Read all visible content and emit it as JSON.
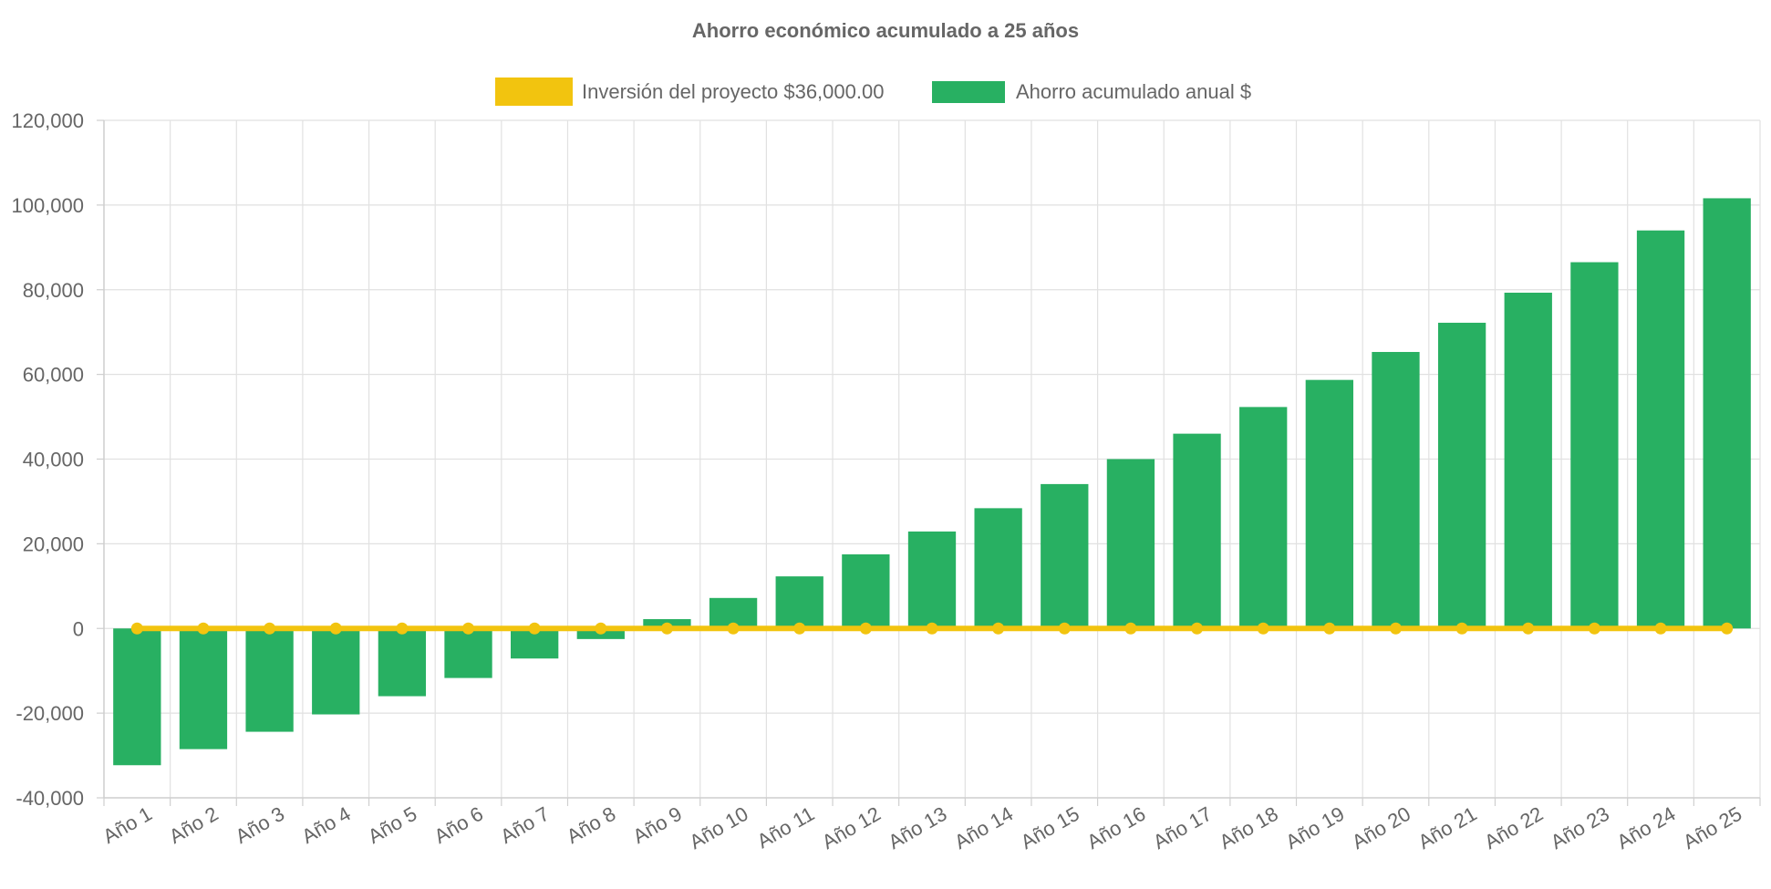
{
  "colors": {
    "savings": "#28b062",
    "investment": "#f2c40f",
    "grid": "#e1e1e1",
    "axis": "#cfcfcf",
    "text": "#666666"
  },
  "chart_data": {
    "type": "bar",
    "title": "Ahorro económico acumulado a 25 años",
    "xlabel": "",
    "ylabel": "",
    "ylim": [
      -40000,
      120000
    ],
    "y_ticks": [
      120000,
      100000,
      80000,
      60000,
      40000,
      20000,
      0,
      -20000,
      -40000
    ],
    "y_tick_labels": [
      "120,000",
      "100,000",
      "80,000",
      "60,000",
      "40,000",
      "20,000",
      "0",
      "-20,000",
      "-40,000"
    ],
    "grid": true,
    "legend_position": "top",
    "categories": [
      "Año 1",
      "Año 2",
      "Año 3",
      "Año 4",
      "Año 5",
      "Año 6",
      "Año 7",
      "Año 8",
      "Año 9",
      "Año 10",
      "Año 11",
      "Año 12",
      "Año 13",
      "Año 14",
      "Año 15",
      "Año 16",
      "Año 17",
      "Año 18",
      "Año 19",
      "Año 20",
      "Año 21",
      "Año 22",
      "Año 23",
      "Año 24",
      "Año 25"
    ],
    "series": [
      {
        "name": "Inversión del proyecto $36,000.00",
        "type": "line",
        "color": "#f2c40f",
        "values": [
          0,
          0,
          0,
          0,
          0,
          0,
          0,
          0,
          0,
          0,
          0,
          0,
          0,
          0,
          0,
          0,
          0,
          0,
          0,
          0,
          0,
          0,
          0,
          0,
          0
        ]
      },
      {
        "name": "Ahorro acumulado anual $",
        "type": "bar",
        "color": "#28b062",
        "values": [
          -32300,
          -28500,
          -24400,
          -20300,
          -16000,
          -11700,
          -7100,
          -2500,
          2200,
          7200,
          12300,
          17500,
          22900,
          28400,
          34100,
          40000,
          46000,
          52300,
          58700,
          65300,
          72200,
          79300,
          86500,
          94000,
          101600
        ]
      }
    ]
  }
}
